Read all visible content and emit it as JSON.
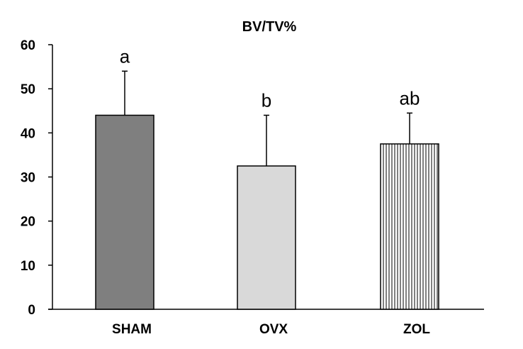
{
  "chart_data": {
    "type": "bar",
    "title": "BV/TV%",
    "xlabel": "",
    "ylabel": "",
    "categories": [
      "SHAM",
      "OVX",
      "ZOL"
    ],
    "values": [
      44,
      32.5,
      37.5
    ],
    "error_upper": [
      54,
      44,
      44.5
    ],
    "significance_labels": [
      "a",
      "b",
      "ab"
    ],
    "bar_styles": [
      {
        "fill": "#7f7f7f",
        "pattern": "solid"
      },
      {
        "fill": "#d9d9d9",
        "pattern": "solid"
      },
      {
        "fill": "#ffffff",
        "pattern": "vertical-lines"
      }
    ],
    "ylim": [
      0,
      60
    ],
    "yticks": [
      0,
      10,
      20,
      30,
      40,
      50,
      60
    ],
    "grid": false,
    "legend": "none"
  }
}
